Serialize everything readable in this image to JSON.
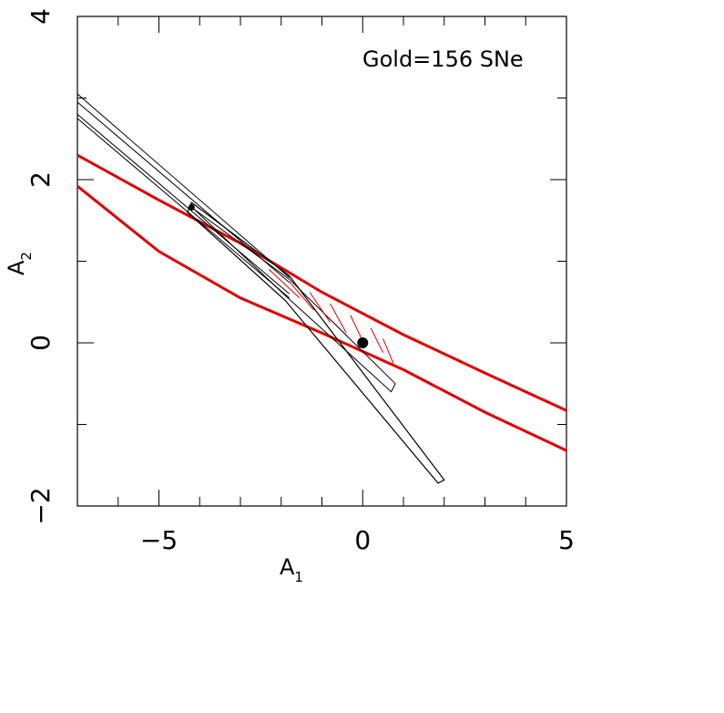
{
  "chart_data": {
    "type": "contour",
    "xlabel": "A",
    "xlabel_sub": "1",
    "ylabel": "A",
    "ylabel_sub": "2",
    "xlim": [
      -7,
      5
    ],
    "ylim": [
      -2,
      4
    ],
    "x_ticks_major": [
      -5,
      0,
      5
    ],
    "x_ticks_minor": [
      -6,
      -5,
      -4,
      -3,
      -2,
      -1,
      0,
      1,
      2,
      3,
      4
    ],
    "y_ticks_major": [
      -2,
      0,
      2,
      4
    ],
    "y_ticks_minor": [
      -1,
      0,
      1,
      2,
      3
    ],
    "x_tick_labels": [
      "−5",
      "0",
      "5"
    ],
    "y_tick_labels": [
      "−2",
      "0",
      "2",
      "4"
    ],
    "annotation": "Gold=156 SNe",
    "red_band": {
      "color": "#e00000",
      "upper": [
        [
          -7,
          2.3
        ],
        [
          -5,
          1.75
        ],
        [
          -3,
          1.22
        ],
        [
          -1,
          0.62
        ],
        [
          1,
          0.1
        ],
        [
          3,
          -0.37
        ],
        [
          5,
          -0.83
        ]
      ],
      "lower": [
        [
          -7,
          1.92
        ],
        [
          -5,
          1.12
        ],
        [
          -3,
          0.55
        ],
        [
          -1,
          0.12
        ],
        [
          1,
          -0.33
        ],
        [
          3,
          -0.85
        ],
        [
          5,
          -1.32
        ]
      ]
    },
    "black_contours": {
      "color": "#000000",
      "bands": [
        {
          "top": [
            [
              -7,
              3.05
            ],
            [
              -1.8,
              0.8
            ]
          ],
          "bottom": [
            [
              -7,
              2.75
            ],
            [
              -1.8,
              0.55
            ]
          ]
        },
        {
          "top": [
            [
              -7,
              2.95
            ],
            [
              -1.8,
              0.74
            ]
          ],
          "bottom": [
            [
              -7,
              2.8
            ],
            [
              -1.8,
              0.6
            ]
          ]
        }
      ],
      "inner_ellipse": [
        [
          -4.2,
          1.66
        ],
        [
          -1.8,
          0.78
        ],
        [
          0.8,
          -0.5
        ],
        [
          0.7,
          -0.6
        ],
        [
          -1.9,
          0.58
        ],
        [
          -4.1,
          1.62
        ]
      ],
      "outer_ellipse": [
        [
          -4.2,
          1.72
        ],
        [
          -1.8,
          0.82
        ],
        [
          2.0,
          -1.68
        ],
        [
          1.85,
          -1.72
        ],
        [
          -1.9,
          0.52
        ],
        [
          -4.3,
          1.6
        ]
      ]
    },
    "hatch_region": {
      "color": "#e00000",
      "segments": [
        [
          [
            -2.3,
            0.9
          ],
          [
            -1.55,
            0.55
          ]
        ],
        [
          [
            -1.8,
            0.75
          ],
          [
            -1.2,
            0.4
          ]
        ],
        [
          [
            -1.3,
            0.62
          ],
          [
            -0.8,
            0.25
          ]
        ],
        [
          [
            -0.8,
            0.48
          ],
          [
            -0.4,
            0.12
          ]
        ],
        [
          [
            -0.3,
            0.34
          ],
          [
            0.0,
            0.02
          ]
        ],
        [
          [
            0.2,
            0.18
          ],
          [
            0.5,
            -0.12
          ]
        ],
        [
          [
            0.5,
            0.05
          ],
          [
            0.75,
            -0.25
          ]
        ]
      ]
    },
    "points": [
      {
        "x": 0.0,
        "y": 0.0,
        "size": "large"
      },
      {
        "x": -4.2,
        "y": 1.66,
        "size": "small"
      }
    ]
  }
}
